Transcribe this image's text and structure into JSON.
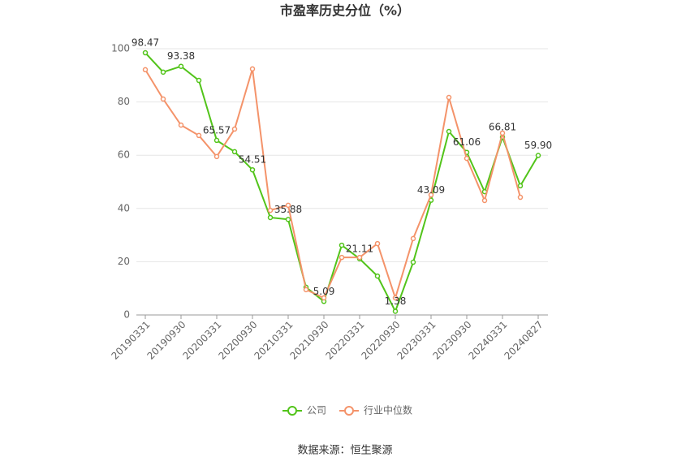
{
  "chart_data": {
    "type": "line",
    "title": "市盈率历史分位（%）",
    "categories": [
      "20190331",
      null,
      "20190930",
      null,
      "20200331",
      null,
      "20200930",
      null,
      "20210331",
      null,
      "20210930",
      null,
      "20220331",
      null,
      "20220930",
      null,
      "20230331",
      null,
      "20230930",
      null,
      "20240331",
      null,
      "20240827"
    ],
    "series": [
      {
        "name": "公司",
        "color": "#52c41a",
        "values": [
          98.47,
          91.2,
          93.38,
          88.1,
          65.57,
          61.3,
          54.51,
          36.6,
          35.88,
          10.4,
          5.09,
          26.2,
          21.11,
          14.6,
          1.38,
          19.8,
          43.09,
          68.9,
          61.06,
          46.3,
          66.81,
          48.5,
          59.9
        ],
        "value_labels": [
          "98.47",
          null,
          "93.38",
          null,
          "65.57",
          null,
          "54.51",
          null,
          "35.88",
          null,
          "5.09",
          null,
          "21.11",
          null,
          "1.38",
          null,
          "43.09",
          null,
          "61.06",
          null,
          "66.81",
          null,
          "59.90"
        ]
      },
      {
        "name": "行业中位数",
        "color": "#f4936a",
        "values": [
          92.1,
          81.1,
          71.3,
          67.4,
          59.5,
          69.8,
          92.4,
          39.3,
          41.2,
          9.5,
          6.4,
          21.6,
          21.6,
          26.8,
          6.4,
          28.7,
          45.1,
          81.7,
          58.8,
          43.0,
          68.3,
          44.2,
          null
        ]
      }
    ],
    "ylim": [
      0,
      100
    ],
    "yticks": [
      0,
      20,
      40,
      60,
      80,
      100
    ],
    "grid": true,
    "legend": "bottom",
    "source": "数据来源：恒生聚源"
  }
}
